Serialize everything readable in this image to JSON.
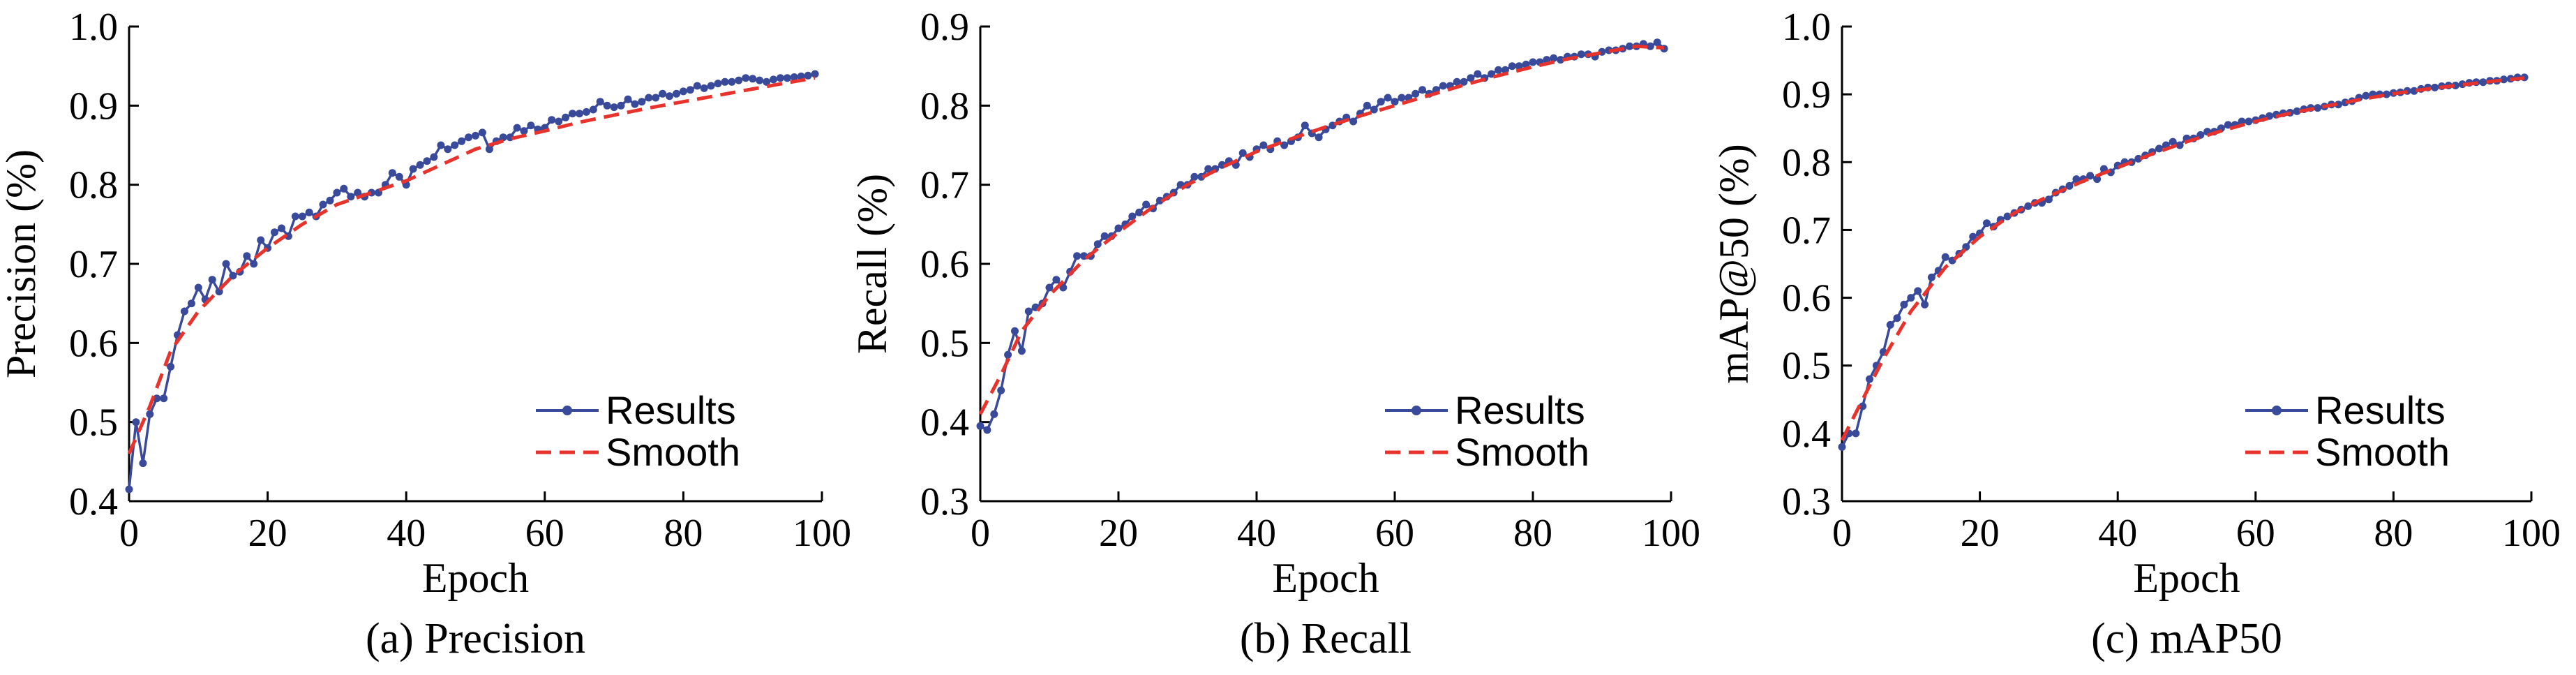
{
  "colors": {
    "results": "#3a4a9a",
    "smooth": "#e8322c",
    "axis": "#000000"
  },
  "chart_data": [
    {
      "type": "line",
      "caption": "(a) Precision",
      "xlabel": "Epoch",
      "ylabel": "Precision (%)",
      "xlim": [
        0,
        100
      ],
      "ylim": [
        0.4,
        1.0
      ],
      "xticks": [
        0,
        20,
        40,
        60,
        80,
        100
      ],
      "yticks": [
        0.4,
        0.5,
        0.6,
        0.7,
        0.8,
        0.9,
        1.0
      ],
      "grid": false,
      "legend_position": "bottom-right",
      "series": [
        {
          "name": "Results",
          "x": [
            0,
            1,
            2,
            3,
            4,
            5,
            6,
            7,
            8,
            9,
            10,
            11,
            12,
            13,
            14,
            15,
            16,
            17,
            18,
            19,
            20,
            21,
            22,
            23,
            24,
            25,
            26,
            27,
            28,
            29,
            30,
            31,
            32,
            33,
            34,
            35,
            36,
            37,
            38,
            39,
            40,
            41,
            42,
            43,
            44,
            45,
            46,
            47,
            48,
            49,
            50,
            51,
            52,
            53,
            54,
            55,
            56,
            57,
            58,
            59,
            60,
            61,
            62,
            63,
            64,
            65,
            66,
            67,
            68,
            69,
            70,
            71,
            72,
            73,
            74,
            75,
            76,
            77,
            78,
            79,
            80,
            81,
            82,
            83,
            84,
            85,
            86,
            87,
            88,
            89,
            90,
            91,
            92,
            93,
            94,
            95,
            96,
            97,
            98,
            99
          ],
          "y": [
            0.415,
            0.5,
            0.448,
            0.51,
            0.53,
            0.53,
            0.57,
            0.61,
            0.64,
            0.65,
            0.67,
            0.655,
            0.68,
            0.665,
            0.7,
            0.685,
            0.69,
            0.71,
            0.7,
            0.73,
            0.72,
            0.74,
            0.745,
            0.735,
            0.76,
            0.76,
            0.765,
            0.76,
            0.775,
            0.78,
            0.79,
            0.795,
            0.785,
            0.79,
            0.785,
            0.79,
            0.79,
            0.8,
            0.815,
            0.81,
            0.8,
            0.82,
            0.825,
            0.83,
            0.835,
            0.85,
            0.845,
            0.85,
            0.855,
            0.86,
            0.862,
            0.866,
            0.845,
            0.855,
            0.86,
            0.86,
            0.872,
            0.868,
            0.875,
            0.87,
            0.872,
            0.882,
            0.88,
            0.885,
            0.89,
            0.89,
            0.892,
            0.895,
            0.905,
            0.9,
            0.898,
            0.9,
            0.908,
            0.902,
            0.905,
            0.91,
            0.91,
            0.915,
            0.912,
            0.915,
            0.918,
            0.92,
            0.925,
            0.922,
            0.925,
            0.928,
            0.93,
            0.93,
            0.932,
            0.935,
            0.934,
            0.932,
            0.93,
            0.933,
            0.935,
            0.935,
            0.936,
            0.937,
            0.938,
            0.94
          ]
        },
        {
          "name": "Smooth",
          "x": [
            0,
            3,
            6,
            10,
            15,
            20,
            25,
            30,
            35,
            40,
            45,
            50,
            55,
            60,
            65,
            70,
            75,
            80,
            85,
            90,
            95,
            99
          ],
          "y": [
            0.46,
            0.52,
            0.59,
            0.64,
            0.685,
            0.72,
            0.75,
            0.775,
            0.79,
            0.805,
            0.825,
            0.845,
            0.858,
            0.868,
            0.879,
            0.888,
            0.897,
            0.905,
            0.913,
            0.921,
            0.929,
            0.935
          ],
          "dashed": true
        }
      ]
    },
    {
      "type": "line",
      "caption": "(b) Recall",
      "xlabel": "Epoch",
      "ylabel": "Recall (%)",
      "xlim": [
        0,
        100
      ],
      "ylim": [
        0.3,
        0.9
      ],
      "xticks": [
        0,
        20,
        40,
        60,
        80,
        100
      ],
      "yticks": [
        0.3,
        0.4,
        0.5,
        0.6,
        0.7,
        0.8,
        0.9
      ],
      "grid": false,
      "legend_position": "bottom-right",
      "series": [
        {
          "name": "Results",
          "x": [
            0,
            1,
            2,
            3,
            4,
            5,
            6,
            7,
            8,
            9,
            10,
            11,
            12,
            13,
            14,
            15,
            16,
            17,
            18,
            19,
            20,
            21,
            22,
            23,
            24,
            25,
            26,
            27,
            28,
            29,
            30,
            31,
            32,
            33,
            34,
            35,
            36,
            37,
            38,
            39,
            40,
            41,
            42,
            43,
            44,
            45,
            46,
            47,
            48,
            49,
            50,
            51,
            52,
            53,
            54,
            55,
            56,
            57,
            58,
            59,
            60,
            61,
            62,
            63,
            64,
            65,
            66,
            67,
            68,
            69,
            70,
            71,
            72,
            73,
            74,
            75,
            76,
            77,
            78,
            79,
            80,
            81,
            82,
            83,
            84,
            85,
            86,
            87,
            88,
            89,
            90,
            91,
            92,
            93,
            94,
            95,
            96,
            97,
            98,
            99
          ],
          "y": [
            0.395,
            0.39,
            0.41,
            0.44,
            0.485,
            0.515,
            0.49,
            0.54,
            0.545,
            0.55,
            0.57,
            0.58,
            0.57,
            0.59,
            0.61,
            0.61,
            0.61,
            0.625,
            0.635,
            0.635,
            0.645,
            0.65,
            0.66,
            0.665,
            0.675,
            0.67,
            0.68,
            0.685,
            0.69,
            0.7,
            0.7,
            0.71,
            0.71,
            0.72,
            0.72,
            0.725,
            0.73,
            0.725,
            0.74,
            0.735,
            0.745,
            0.75,
            0.745,
            0.755,
            0.75,
            0.755,
            0.76,
            0.775,
            0.765,
            0.76,
            0.77,
            0.775,
            0.78,
            0.785,
            0.78,
            0.79,
            0.8,
            0.795,
            0.805,
            0.81,
            0.805,
            0.81,
            0.81,
            0.815,
            0.82,
            0.815,
            0.82,
            0.825,
            0.825,
            0.83,
            0.83,
            0.835,
            0.84,
            0.835,
            0.84,
            0.845,
            0.845,
            0.85,
            0.85,
            0.852,
            0.855,
            0.855,
            0.858,
            0.86,
            0.858,
            0.862,
            0.862,
            0.865,
            0.865,
            0.862,
            0.868,
            0.87,
            0.87,
            0.872,
            0.875,
            0.875,
            0.878,
            0.875,
            0.88,
            0.872
          ]
        },
        {
          "name": "Smooth",
          "x": [
            0,
            3,
            6,
            10,
            15,
            20,
            25,
            30,
            35,
            40,
            45,
            50,
            55,
            60,
            65,
            70,
            75,
            80,
            85,
            90,
            95,
            99
          ],
          "y": [
            0.41,
            0.46,
            0.515,
            0.56,
            0.605,
            0.64,
            0.672,
            0.7,
            0.722,
            0.742,
            0.758,
            0.773,
            0.787,
            0.8,
            0.813,
            0.826,
            0.838,
            0.849,
            0.859,
            0.867,
            0.875,
            0.873
          ],
          "dashed": true
        }
      ]
    },
    {
      "type": "line",
      "caption": "(c) mAP50",
      "xlabel": "Epoch",
      "ylabel": "mAP@50 (%)",
      "xlim": [
        0,
        100
      ],
      "ylim": [
        0.3,
        1.0
      ],
      "xticks": [
        0,
        20,
        40,
        60,
        80,
        100
      ],
      "yticks": [
        0.3,
        0.4,
        0.5,
        0.6,
        0.7,
        0.8,
        0.9,
        1.0
      ],
      "grid": false,
      "legend_position": "bottom-right",
      "series": [
        {
          "name": "Results",
          "x": [
            0,
            1,
            2,
            3,
            4,
            5,
            6,
            7,
            8,
            9,
            10,
            11,
            12,
            13,
            14,
            15,
            16,
            17,
            18,
            19,
            20,
            21,
            22,
            23,
            24,
            25,
            26,
            27,
            28,
            29,
            30,
            31,
            32,
            33,
            34,
            35,
            36,
            37,
            38,
            39,
            40,
            41,
            42,
            43,
            44,
            45,
            46,
            47,
            48,
            49,
            50,
            51,
            52,
            53,
            54,
            55,
            56,
            57,
            58,
            59,
            60,
            61,
            62,
            63,
            64,
            65,
            66,
            67,
            68,
            69,
            70,
            71,
            72,
            73,
            74,
            75,
            76,
            77,
            78,
            79,
            80,
            81,
            82,
            83,
            84,
            85,
            86,
            87,
            88,
            89,
            90,
            91,
            92,
            93,
            94,
            95,
            96,
            97,
            98,
            99
          ],
          "y": [
            0.38,
            0.4,
            0.4,
            0.44,
            0.48,
            0.5,
            0.52,
            0.56,
            0.57,
            0.59,
            0.6,
            0.61,
            0.59,
            0.63,
            0.64,
            0.66,
            0.655,
            0.665,
            0.675,
            0.69,
            0.695,
            0.71,
            0.705,
            0.715,
            0.72,
            0.725,
            0.73,
            0.735,
            0.74,
            0.74,
            0.745,
            0.755,
            0.76,
            0.765,
            0.775,
            0.775,
            0.78,
            0.775,
            0.79,
            0.785,
            0.795,
            0.8,
            0.8,
            0.805,
            0.81,
            0.815,
            0.82,
            0.825,
            0.83,
            0.825,
            0.835,
            0.835,
            0.84,
            0.845,
            0.845,
            0.85,
            0.855,
            0.855,
            0.86,
            0.86,
            0.862,
            0.865,
            0.868,
            0.87,
            0.872,
            0.873,
            0.875,
            0.878,
            0.88,
            0.88,
            0.882,
            0.885,
            0.885,
            0.888,
            0.89,
            0.895,
            0.898,
            0.9,
            0.9,
            0.9,
            0.902,
            0.903,
            0.905,
            0.905,
            0.908,
            0.91,
            0.91,
            0.912,
            0.913,
            0.913,
            0.915,
            0.917,
            0.918,
            0.918,
            0.92,
            0.92,
            0.922,
            0.923,
            0.925,
            0.925
          ]
        },
        {
          "name": "Smooth",
          "x": [
            0,
            3,
            6,
            10,
            15,
            20,
            25,
            30,
            35,
            40,
            45,
            50,
            55,
            60,
            65,
            70,
            75,
            80,
            85,
            90,
            95,
            99
          ],
          "y": [
            0.39,
            0.45,
            0.51,
            0.58,
            0.645,
            0.69,
            0.725,
            0.75,
            0.772,
            0.792,
            0.812,
            0.83,
            0.846,
            0.86,
            0.872,
            0.882,
            0.892,
            0.901,
            0.908,
            0.914,
            0.92,
            0.924
          ],
          "dashed": true
        }
      ]
    }
  ]
}
